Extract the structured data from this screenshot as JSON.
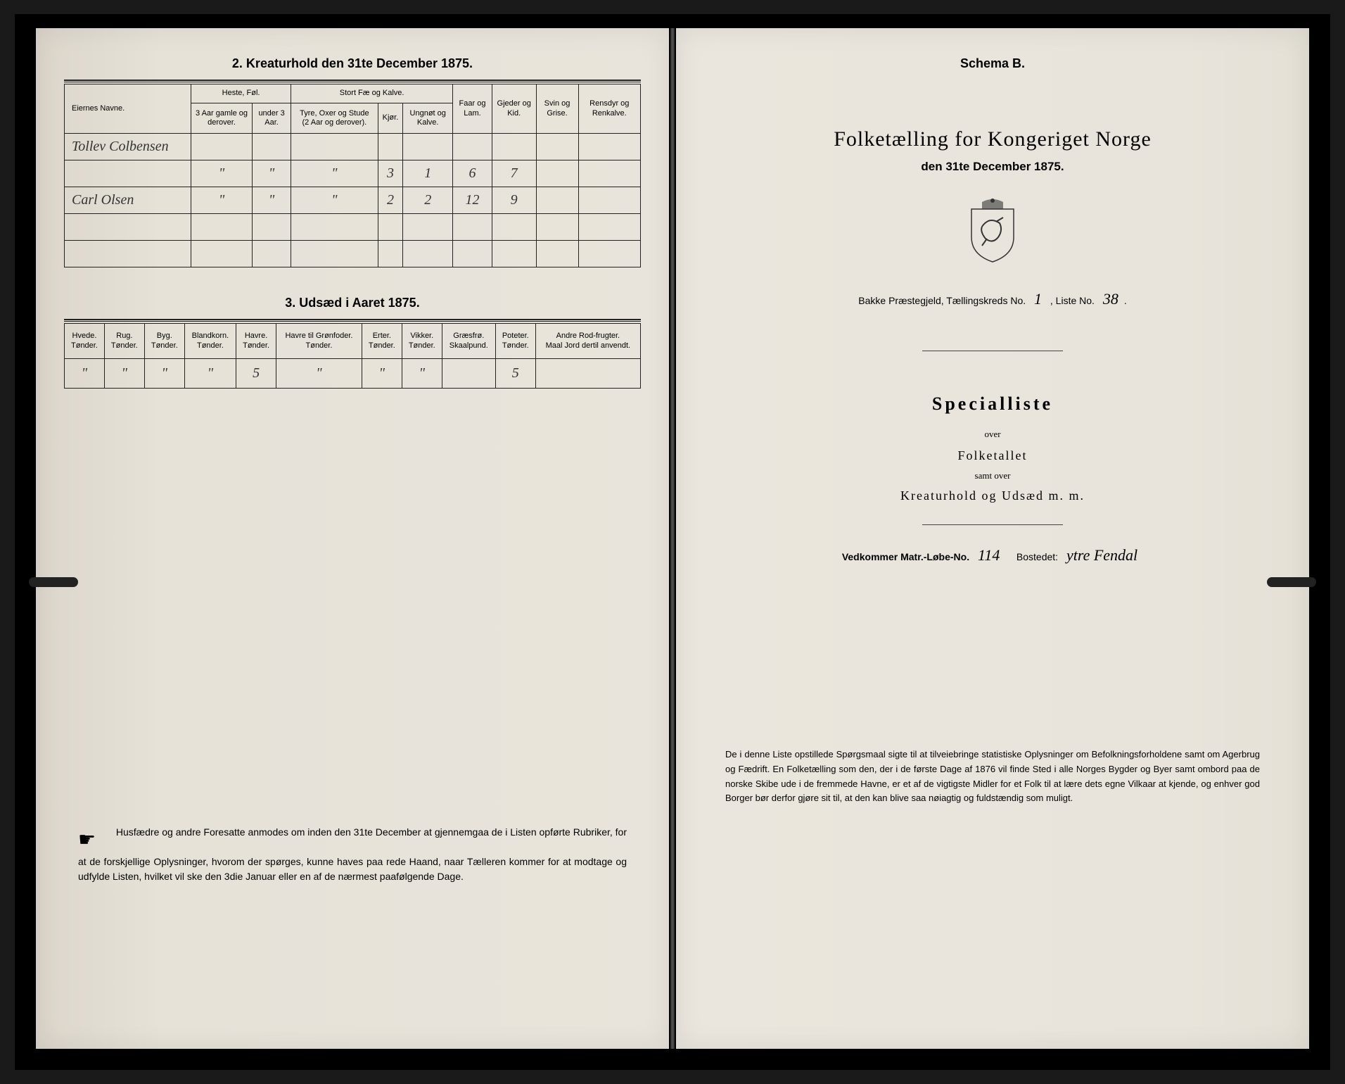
{
  "left": {
    "section2_title": "2. Kreaturhold den 31te December 1875.",
    "table1": {
      "headers": {
        "name": "Eiernes Navne.",
        "heste": "Heste, Føl.",
        "heste_sub1": "3 Aar gamle og derover.",
        "heste_sub2": "under 3 Aar.",
        "stortfae": "Stort Fæ og Kalve.",
        "stortfae_sub1": "Tyre, Oxer og Stude (2 Aar og derover).",
        "stortfae_sub2": "Kjør.",
        "stortfae_sub3": "Ungnøt og Kalve.",
        "faar": "Faar og Lam.",
        "gjeder": "Gjeder og Kid.",
        "svin": "Svin og Grise.",
        "rensdyr": "Rensdyr og Renkalve."
      },
      "rows": [
        {
          "name": "Tollev Colbensen",
          "h1": "",
          "h2": "",
          "s1": "",
          "s2": "",
          "s3": "",
          "faar": "",
          "gjeder": "",
          "svin": "",
          "ren": ""
        },
        {
          "name": "",
          "h1": "\"",
          "h2": "\"",
          "s1": "\"",
          "s2": "3",
          "s3": "1",
          "faar": "6",
          "gjeder": "7",
          "svin": "",
          "ren": ""
        },
        {
          "name": "Carl Olsen",
          "h1": "\"",
          "h2": "\"",
          "s1": "\"",
          "s2": "2",
          "s3": "2",
          "faar": "12",
          "gjeder": "9",
          "svin": "",
          "ren": ""
        },
        {
          "name": "",
          "h1": "",
          "h2": "",
          "s1": "",
          "s2": "",
          "s3": "",
          "faar": "",
          "gjeder": "",
          "svin": "",
          "ren": ""
        },
        {
          "name": "",
          "h1": "",
          "h2": "",
          "s1": "",
          "s2": "",
          "s3": "",
          "faar": "",
          "gjeder": "",
          "svin": "",
          "ren": ""
        }
      ]
    },
    "section3_title": "3. Udsæd i Aaret 1875.",
    "table2": {
      "headers": [
        "Hvede.\nTønder.",
        "Rug.\nTønder.",
        "Byg.\nTønder.",
        "Blandkorn.\nTønder.",
        "Havre.\nTønder.",
        "Havre til Grønfoder.\nTønder.",
        "Erter.\nTønder.",
        "Vikker.\nTønder.",
        "Græsfrø.\nSkaalpund.",
        "Poteter.\nTønder.",
        "Andre Rod-frugter.\nMaal Jord dertil anvendt."
      ],
      "row": [
        "\"",
        "\"",
        "\"",
        "\"",
        "5",
        "\"",
        "\"",
        "\"",
        "",
        "5",
        ""
      ]
    },
    "footer": "Husfædre og andre Foresatte anmodes om inden den 31te December at gjennemgaa de i Listen opførte Rubriker, for at de forskjellige Oplysninger, hvorom der spørges, kunne haves paa rede Haand, naar Tælleren kommer for at modtage og udfylde Listen, hvilket vil ske den 3die Januar eller en af de nærmest paafølgende Dage."
  },
  "right": {
    "schema": "Schema B.",
    "main_title": "Folketælling for Kongeriget Norge",
    "sub_title": "den 31te December 1875.",
    "parish_prefix": "Bakke Præstegjeld, Tællingskreds No.",
    "parish_kreds": "1",
    "liste_label": ", Liste No.",
    "liste_no": "38",
    "special": "Specialliste",
    "over1": "over",
    "folket": "Folketallet",
    "samt": "samt over",
    "kreatur": "Kreaturhold og Udsæd m. m.",
    "matr_label": "Vedkommer Matr.-Løbe-No.",
    "matr_no": "114",
    "bosted_label": "Bostedet:",
    "bosted": "ytre Fendal",
    "footer": "De i denne Liste opstillede Spørgsmaal sigte til at tilveiebringe statistiske Oplysninger om Befolkningsforholdene samt om Agerbrug og Fædrift. En Folketælling som den, der i de første Dage af 1876 vil finde Sted i alle Norges Bygder og Byer samt ombord paa de norske Skibe ude i de fremmede Havne, er et af de vigtigste Midler for et Folk til at lære dets egne Vilkaar at kjende, og enhver god Borger bør derfor gjøre sit til, at den kan blive saa nøiagtig og fuldstændig som muligt."
  },
  "colors": {
    "paper": "#e8e4db",
    "ink": "#222222",
    "background": "#1a1a1a"
  }
}
